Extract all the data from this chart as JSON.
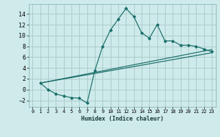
{
  "xlabel": "Humidex (Indice chaleur)",
  "background_color": "#ceeaea",
  "grid_color": "#aacccc",
  "line_color": "#1a6e6a",
  "xlim": [
    -0.5,
    23.5
  ],
  "ylim": [
    -3.2,
    15.8
  ],
  "xticks": [
    0,
    1,
    2,
    3,
    4,
    5,
    6,
    7,
    8,
    9,
    10,
    11,
    12,
    13,
    14,
    15,
    16,
    17,
    18,
    19,
    20,
    21,
    22,
    23
  ],
  "yticks": [
    -2,
    0,
    2,
    4,
    6,
    8,
    10,
    12,
    14
  ],
  "curve1_x": [
    1,
    2,
    3,
    4,
    5,
    6,
    7,
    8,
    9,
    10,
    11,
    12,
    13,
    14,
    15,
    16,
    17,
    18,
    19,
    20,
    21,
    22,
    23
  ],
  "curve1_y": [
    1.2,
    0.0,
    -0.8,
    -1.2,
    -1.5,
    -1.6,
    -2.5,
    3.5,
    8.0,
    11.0,
    13.0,
    15.0,
    13.5,
    10.5,
    9.5,
    12.0,
    9.0,
    9.0,
    8.2,
    8.2,
    8.0,
    7.5,
    7.0
  ],
  "curve2_x": [
    1,
    23
  ],
  "curve2_y": [
    1.2,
    7.4
  ],
  "curve3_x": [
    1,
    23
  ],
  "curve3_y": [
    1.2,
    6.8
  ]
}
